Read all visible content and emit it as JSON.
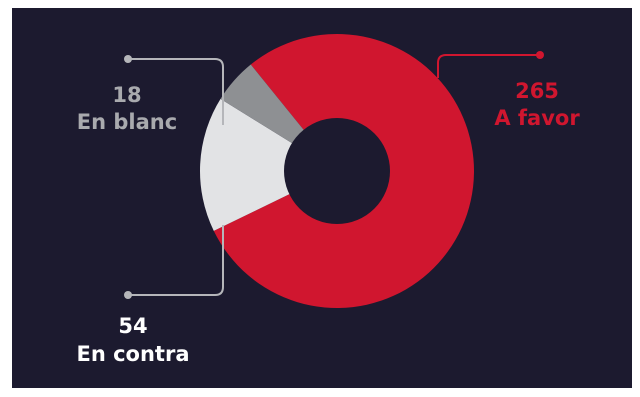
{
  "chart_data": {
    "type": "pie",
    "subtype": "donut",
    "slices": [
      {
        "label": "A favor",
        "value": 265,
        "color": "#d0162f"
      },
      {
        "label": "En contra",
        "value": 54,
        "color": "#e2e3e5"
      },
      {
        "label": "En blanc",
        "value": 18,
        "color": "#8e9093"
      }
    ]
  },
  "labels": {
    "favor_value": "265",
    "favor_text": "A favor",
    "blanc_value": "18",
    "blanc_text": "En blanc",
    "contra_value": "54",
    "contra_text": "En contra"
  },
  "colors": {
    "background": "#1c1a2f",
    "hole": "#1c1a2f",
    "leader_favor": "#d0162f",
    "leader_grey": "#b5b6ba"
  }
}
